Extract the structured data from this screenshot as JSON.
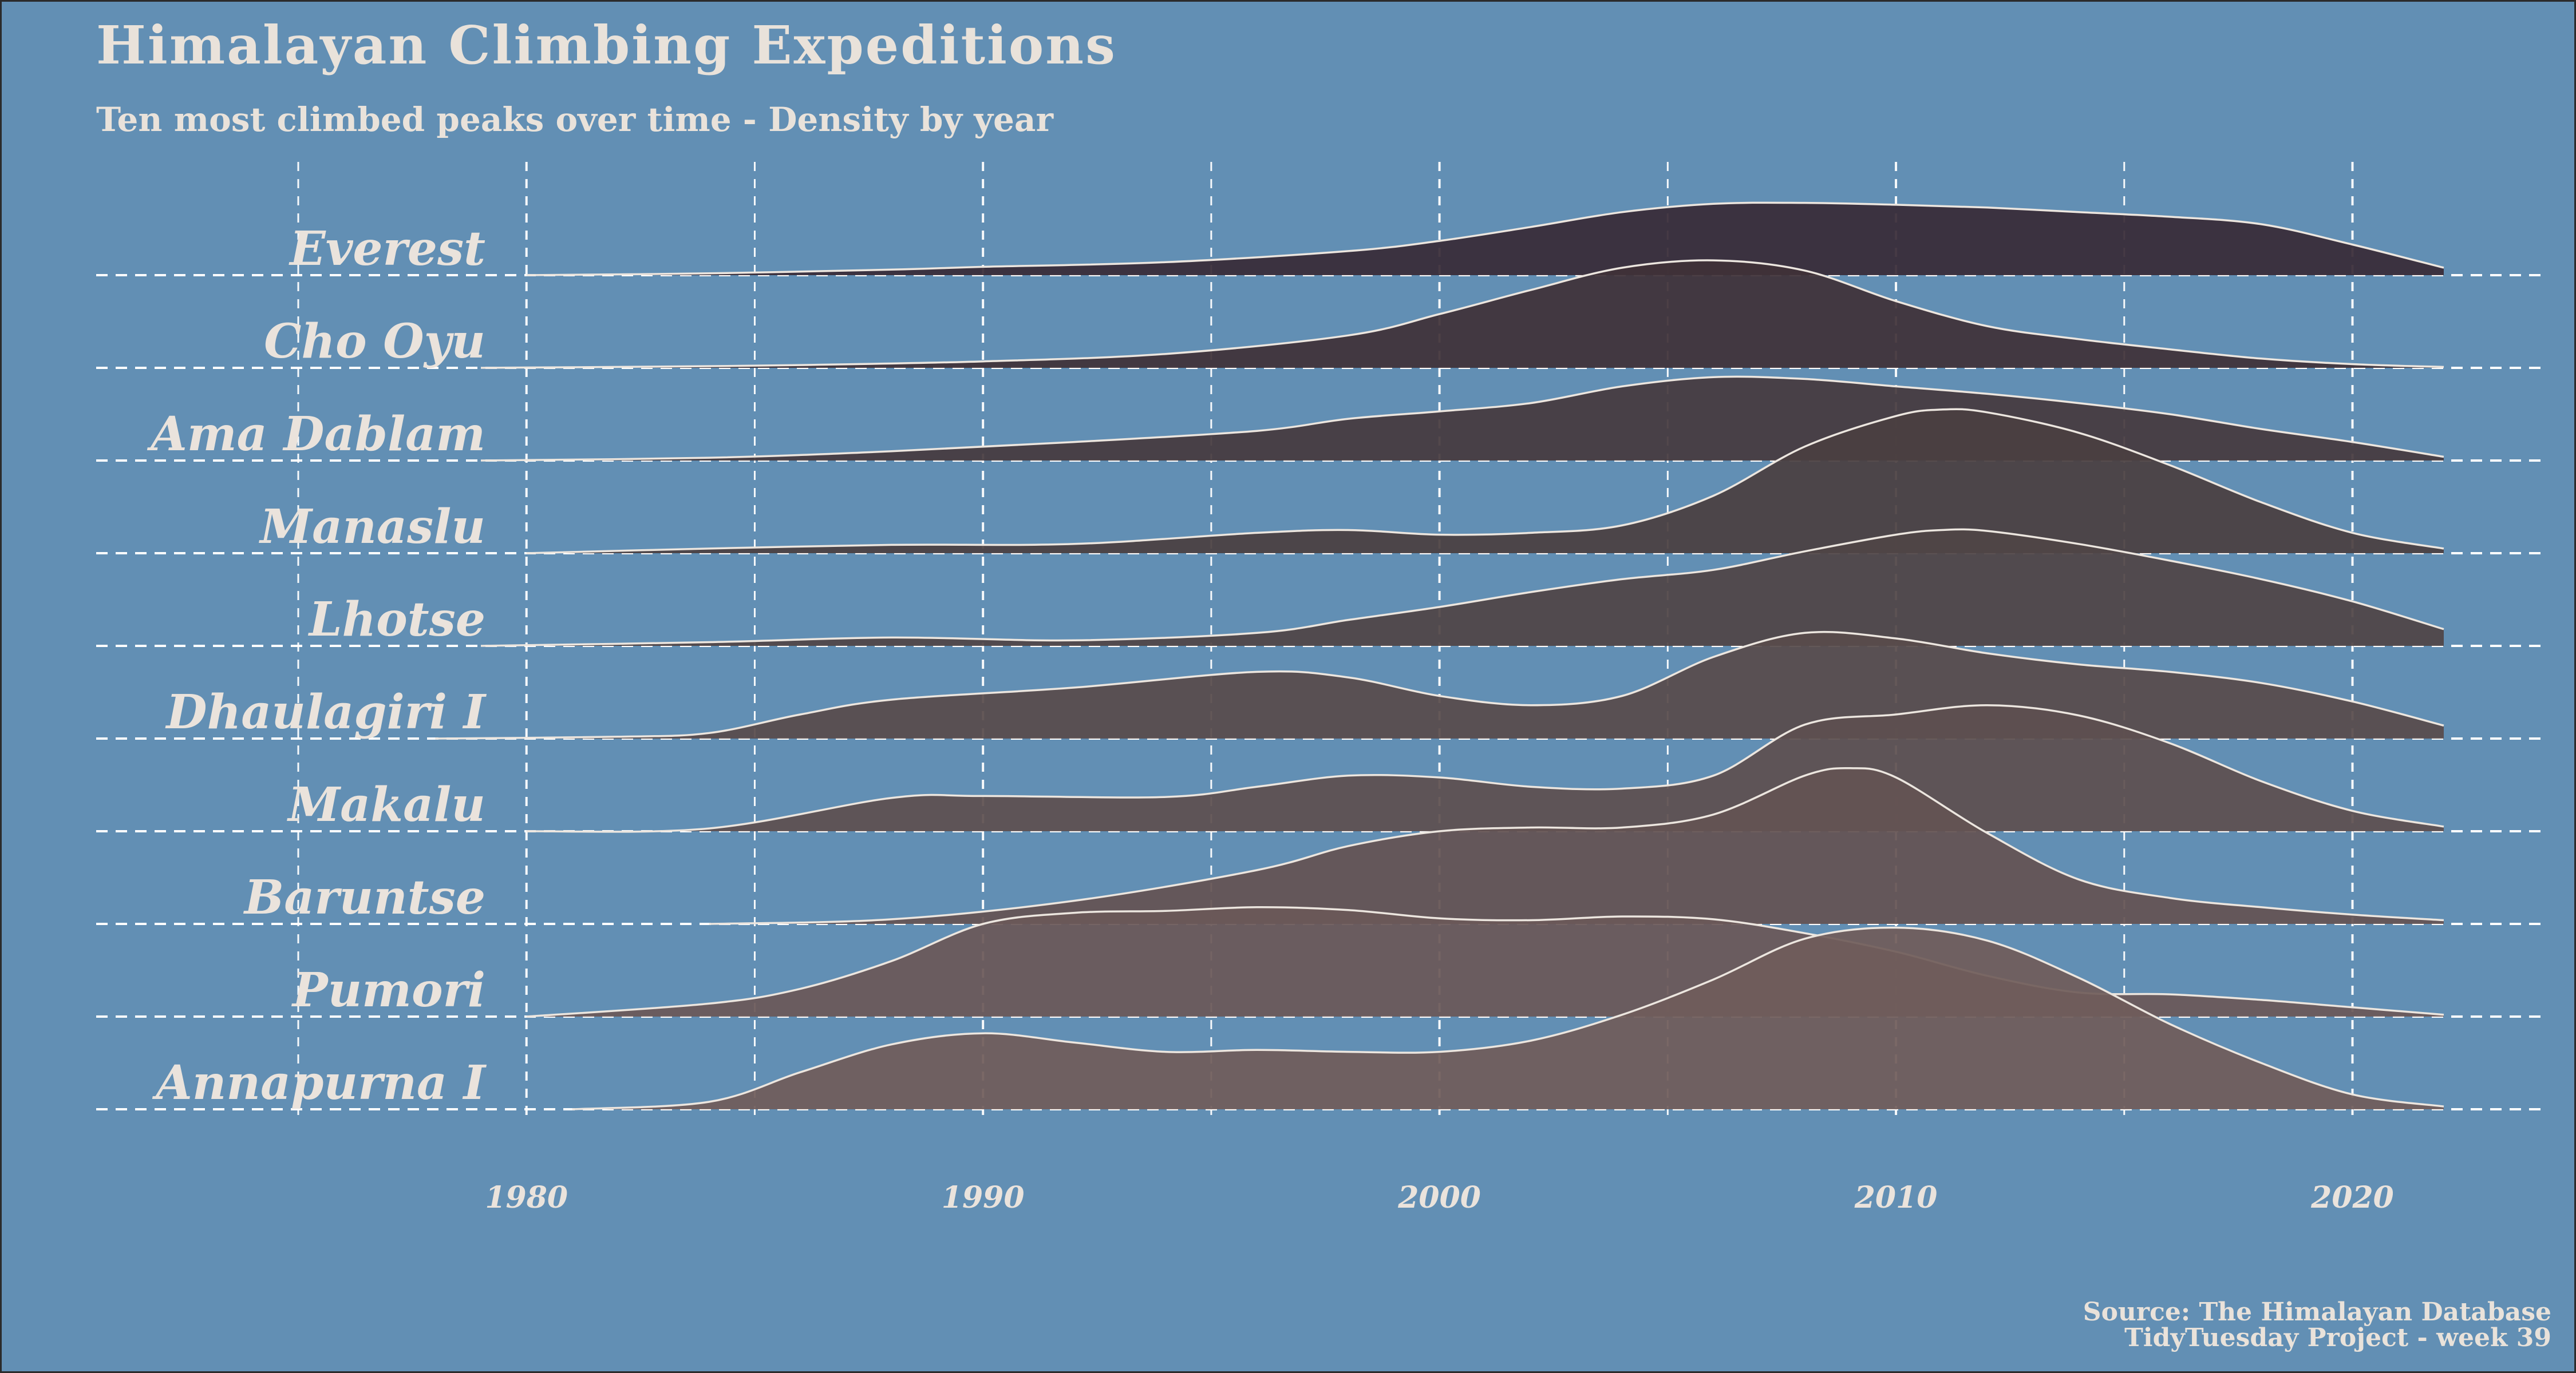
{
  "title": "Himalayan Climbing Expeditions",
  "subtitle": "Ten most climbed peaks over time - Density by year",
  "caption": {
    "source": "Source: The Himalayan Database",
    "project": "TidyTuesday Project - week 39"
  },
  "colors": {
    "background": "#628fb4",
    "text": "#e9e2da",
    "grid": "#ffffff",
    "outline": "#ece6df"
  },
  "chart_data": {
    "type": "ridgeline",
    "title": "Himalayan Climbing Expeditions",
    "subtitle": "Ten most climbed peaks over time - Density by year",
    "xlim": [
      1975,
      2022
    ],
    "x_ticks": [
      1980,
      1990,
      2000,
      2010,
      2020
    ],
    "x_tick_labels": [
      "1980",
      "1990",
      "2000",
      "2010",
      "2020"
    ],
    "grid": true,
    "series": [
      {
        "name": "Everest",
        "fill": "#382b37",
        "x": [
          1980,
          1984,
          1988,
          1990,
          1994,
          1998,
          2000,
          2002,
          2004,
          2006,
          2008,
          2010,
          2012,
          2014,
          2016,
          2018,
          2020,
          2022
        ],
        "density": [
          0,
          0.02,
          0.06,
          0.09,
          0.14,
          0.26,
          0.37,
          0.52,
          0.68,
          0.77,
          0.78,
          0.76,
          0.73,
          0.68,
          0.63,
          0.55,
          0.33,
          0.08
        ]
      },
      {
        "name": "Cho Oyu",
        "fill": "#3f3238",
        "x": [
          1979,
          1982,
          1986,
          1990,
          1994,
          1998,
          2000,
          2002,
          2004,
          2006,
          2008,
          2010,
          2012,
          2014,
          2016,
          2018,
          2020,
          2022
        ],
        "density": [
          0,
          0.01,
          0.03,
          0.07,
          0.15,
          0.35,
          0.58,
          0.84,
          1.08,
          1.16,
          1.05,
          0.72,
          0.45,
          0.31,
          0.2,
          0.1,
          0.04,
          0.01
        ]
      },
      {
        "name": "Ama Dablam",
        "fill": "#463a3e",
        "x": [
          1979,
          1984,
          1988,
          1992,
          1996,
          1998,
          2000,
          2002,
          2004,
          2006,
          2008,
          2010,
          2012,
          2014,
          2016,
          2018,
          2020,
          2022
        ],
        "density": [
          0,
          0.03,
          0.1,
          0.2,
          0.32,
          0.45,
          0.53,
          0.62,
          0.8,
          0.9,
          0.88,
          0.8,
          0.72,
          0.62,
          0.5,
          0.34,
          0.2,
          0.04
        ]
      },
      {
        "name": "Manaslu",
        "fill": "#4a3f41",
        "x": [
          1980,
          1984,
          1988,
          1992,
          1996,
          1998,
          2000,
          2002,
          2004,
          2006,
          2008,
          2010,
          2011,
          2012,
          2014,
          2016,
          2018,
          2020,
          2022
        ],
        "density": [
          0,
          0.05,
          0.09,
          0.1,
          0.22,
          0.25,
          0.2,
          0.22,
          0.3,
          0.62,
          1.15,
          1.48,
          1.55,
          1.52,
          1.3,
          0.95,
          0.55,
          0.22,
          0.05
        ]
      },
      {
        "name": "Lhotse",
        "fill": "#504546",
        "x": [
          1979,
          1984,
          1988,
          1992,
          1996,
          1998,
          2000,
          2002,
          2004,
          2006,
          2008,
          2010,
          2011,
          2012,
          2014,
          2016,
          2018,
          2020,
          2022
        ],
        "density": [
          0,
          0.04,
          0.09,
          0.06,
          0.14,
          0.28,
          0.42,
          0.58,
          0.72,
          0.82,
          1.02,
          1.2,
          1.25,
          1.24,
          1.1,
          0.92,
          0.72,
          0.48,
          0.18
        ]
      },
      {
        "name": "Dhaulagiri I",
        "fill": "#584b4b",
        "x": [
          1978,
          1982,
          1984,
          1986,
          1988,
          1992,
          1996,
          1998,
          2000,
          2002,
          2004,
          2006,
          2008,
          2010,
          2012,
          2014,
          2016,
          2018,
          2020,
          2022
        ],
        "density": [
          0,
          0.02,
          0.06,
          0.26,
          0.42,
          0.55,
          0.72,
          0.66,
          0.46,
          0.36,
          0.46,
          0.88,
          1.14,
          1.08,
          0.92,
          0.8,
          0.72,
          0.6,
          0.4,
          0.14
        ]
      },
      {
        "name": "Makalu",
        "fill": "#5e5050",
        "x": [
          1980,
          1984,
          1988,
          1990,
          1994,
          1996,
          1998,
          2000,
          2002,
          2004,
          2006,
          2008,
          2010,
          2012,
          2014,
          2016,
          2018,
          2020,
          2022
        ],
        "density": [
          0,
          0.03,
          0.36,
          0.38,
          0.37,
          0.48,
          0.6,
          0.58,
          0.48,
          0.46,
          0.6,
          1.15,
          1.26,
          1.36,
          1.25,
          0.95,
          0.54,
          0.22,
          0.05
        ]
      },
      {
        "name": "Baruntse",
        "fill": "#645353",
        "x": [
          1984,
          1988,
          1992,
          1996,
          1998,
          2000,
          2002,
          2004,
          2006,
          2008,
          2009,
          2010,
          2012,
          2014,
          2016,
          2018,
          2020,
          2022
        ],
        "density": [
          0,
          0.05,
          0.25,
          0.58,
          0.84,
          1.0,
          1.04,
          1.04,
          1.18,
          1.6,
          1.68,
          1.58,
          0.98,
          0.48,
          0.28,
          0.18,
          0.1,
          0.04
        ]
      },
      {
        "name": "Pumori",
        "fill": "#6b5858",
        "x": [
          1980,
          1984,
          1986,
          1988,
          1990,
          1992,
          1994,
          1996,
          1998,
          2000,
          2002,
          2004,
          2006,
          2008,
          2010,
          2012,
          2014,
          2016,
          2018,
          2020,
          2022
        ],
        "density": [
          0,
          0.14,
          0.3,
          0.6,
          1.0,
          1.12,
          1.14,
          1.18,
          1.15,
          1.06,
          1.04,
          1.08,
          1.05,
          0.9,
          0.7,
          0.44,
          0.26,
          0.24,
          0.18,
          0.1,
          0.02
        ]
      },
      {
        "name": "Annapurna I",
        "fill": "#705c5a",
        "x": [
          1981,
          1984,
          1986,
          1988,
          1990,
          1992,
          1994,
          1996,
          1998,
          2000,
          2002,
          2004,
          2006,
          2008,
          2010,
          2012,
          2014,
          2016,
          2018,
          2020,
          2022
        ],
        "density": [
          0,
          0.08,
          0.4,
          0.7,
          0.82,
          0.72,
          0.62,
          0.64,
          0.62,
          0.62,
          0.74,
          1.02,
          1.4,
          1.84,
          1.96,
          1.82,
          1.42,
          0.92,
          0.5,
          0.16,
          0.03
        ]
      }
    ]
  }
}
